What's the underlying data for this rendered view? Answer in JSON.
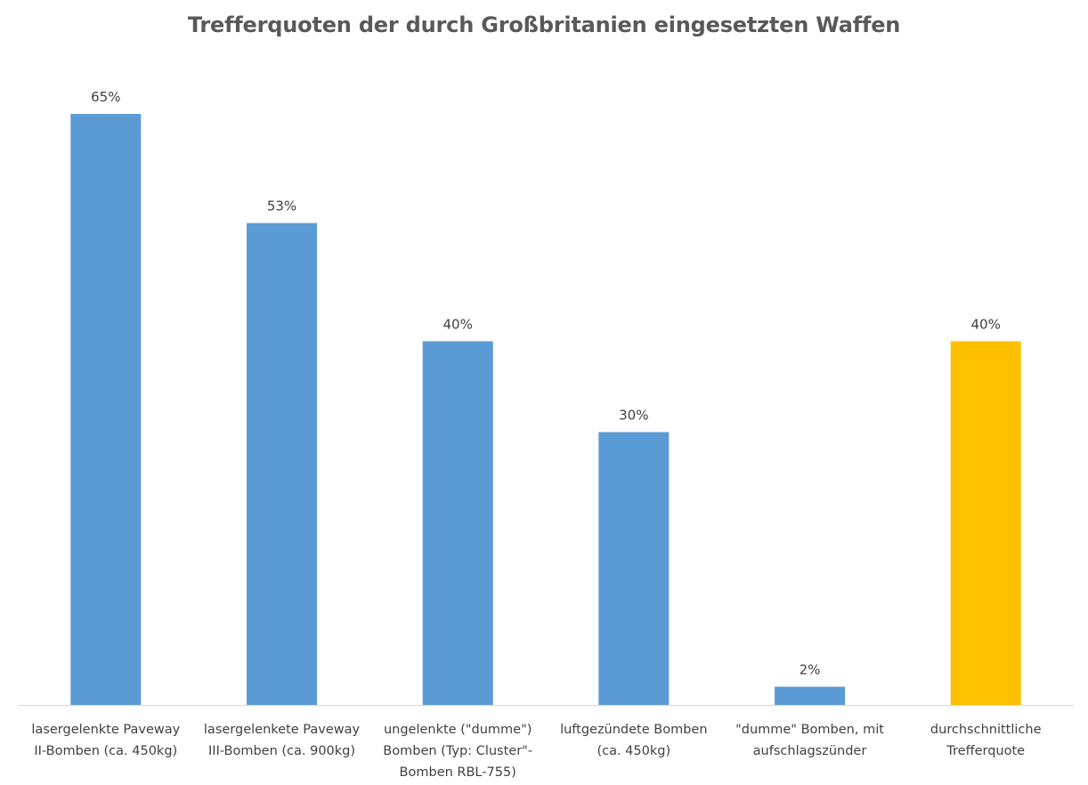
{
  "chart_data": {
    "type": "bar",
    "title": "Trefferquoten der durch Großbritanien eingesetzten Waffen",
    "xlabel": "",
    "ylabel": "",
    "ylim": [
      0,
      70
    ],
    "grid": false,
    "legend": "none",
    "unit_suffix": "%",
    "categories": [
      [
        "lasergelenkte Paveway",
        "II-Bomben (ca. 450kg)"
      ],
      [
        "lasergelenkete Paveway",
        "III-Bomben (ca. 900kg)"
      ],
      [
        "ungelenkte (\"dumme\")",
        "Bomben (Typ: Cluster\"-",
        "Bomben RBL-755)"
      ],
      [
        "luftgezündete Bomben",
        "(ca. 450kg)"
      ],
      [
        "\"dumme\" Bomben, mit",
        "aufschlagszünder"
      ],
      [
        "durchschnittliche",
        "Trefferquote"
      ]
    ],
    "values": [
      65,
      53,
      40,
      30,
      2,
      40
    ],
    "data_labels": [
      "65%",
      "53%",
      "40%",
      "30%",
      "2%",
      "40%"
    ],
    "colors": [
      "#5B9BD5",
      "#5B9BD5",
      "#5B9BD5",
      "#5B9BD5",
      "#5B9BD5",
      "#FFC000"
    ],
    "axis_color": "#D9D9D9"
  }
}
